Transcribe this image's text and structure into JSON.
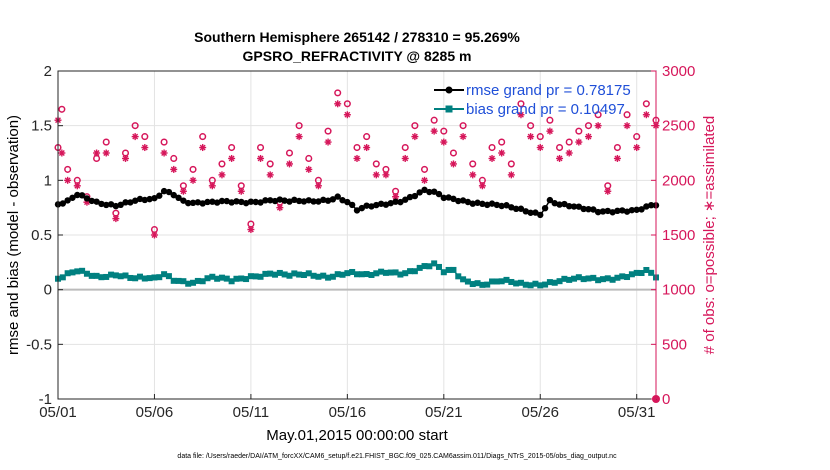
{
  "chart_data": {
    "type": "scatter",
    "title_lines": [
      "Southern Hemisphere 265142 / 278310 = 95.269%",
      "GPSRO_REFRACTIVITY @ 8285 m"
    ],
    "xlabel": "May.01,2015 00:00:00 start",
    "ylabel_left": "rmse and bias (model - observation)",
    "ylabel_right": "# of obs: o=possible; ∗=assimilated",
    "footnote": "data file: /Users/raeder/DAI/ATM_forcXX/CAM6_setup/f.e21.FHIST_BGC.f09_025.CAM6assim.011/Diags_NTrS_2015-05/obs_diag_output.nc",
    "x_tick_labels": [
      "05/01",
      "05/06",
      "05/11",
      "05/16",
      "05/21",
      "05/26",
      "05/31"
    ],
    "x_tick_days": [
      0,
      5,
      10,
      15,
      20,
      25,
      30
    ],
    "xlim": [
      0,
      31
    ],
    "ylim_left": [
      -1,
      2
    ],
    "ylim_right": [
      0,
      3000
    ],
    "y_left_ticks": [
      -1,
      -0.5,
      0,
      0.5,
      1,
      1.5,
      2
    ],
    "y_left_tick_labels": [
      "-1",
      "-0.5",
      "0",
      "0.5",
      "1",
      "1.5",
      "2"
    ],
    "y_right_ticks": [
      0,
      500,
      1000,
      1500,
      2000,
      2500,
      3000
    ],
    "y_right_tick_labels": [
      "0",
      "500",
      "1000",
      "1500",
      "2000",
      "2500",
      "3000"
    ],
    "grid": true,
    "legend_position": "top-right",
    "colors": {
      "rmse": "#000000",
      "bias": "#008080",
      "obs": "#d6165a",
      "zero_line": "#bbbbbb",
      "legend_text": "#1f4fd8"
    },
    "series": [
      {
        "name": "rmse grand pr = 0.78175",
        "axis": "left",
        "marker": "filled-circle-line",
        "keypoints_day": [
          0,
          0.5,
          1,
          2,
          3,
          4,
          5,
          5.5,
          6,
          6.5,
          7,
          8,
          9,
          10,
          11,
          12,
          13,
          14,
          14.5,
          15,
          15.5,
          16,
          17,
          18,
          19,
          19.5,
          20,
          21,
          22,
          23,
          24,
          25,
          25.5,
          26,
          27,
          28,
          29,
          30,
          31
        ],
        "keypoints_value": [
          0.78,
          0.8,
          0.86,
          0.8,
          0.78,
          0.81,
          0.82,
          0.9,
          0.88,
          0.82,
          0.8,
          0.79,
          0.8,
          0.81,
          0.82,
          0.8,
          0.81,
          0.83,
          0.85,
          0.8,
          0.72,
          0.75,
          0.79,
          0.83,
          0.9,
          0.88,
          0.84,
          0.82,
          0.79,
          0.76,
          0.73,
          0.7,
          0.82,
          0.78,
          0.74,
          0.72,
          0.73,
          0.72,
          0.77
        ]
      },
      {
        "name": "bias grand pr = 0.10497",
        "axis": "left",
        "marker": "filled-square-line",
        "keypoints_day": [
          0,
          1,
          2,
          3,
          4,
          5,
          5.5,
          6,
          7,
          8,
          9,
          10,
          11,
          12,
          13,
          14,
          15,
          16,
          17,
          18,
          19,
          19.5,
          20,
          20.5,
          21,
          22,
          23,
          24,
          25,
          26,
          27,
          28,
          29,
          30,
          30.5,
          31
        ],
        "keypoints_value": [
          0.1,
          0.16,
          0.12,
          0.15,
          0.1,
          0.09,
          0.14,
          0.1,
          0.07,
          0.1,
          0.08,
          0.13,
          0.15,
          0.12,
          0.14,
          0.13,
          0.15,
          0.12,
          0.17,
          0.16,
          0.2,
          0.22,
          0.16,
          0.18,
          0.1,
          0.05,
          0.07,
          0.05,
          0.06,
          0.08,
          0.09,
          0.1,
          0.12,
          0.14,
          0.16,
          0.11
        ]
      },
      {
        "name": "possible",
        "axis": "right",
        "marker": "open-circle",
        "keypoints_day": [
          0,
          0.2,
          0.5,
          1,
          1.5,
          2,
          2.5,
          3,
          3.5,
          4,
          4.5,
          5,
          5.5,
          6,
          6.5,
          7,
          7.5,
          8,
          8.5,
          9,
          9.5,
          10,
          10.5,
          11,
          11.5,
          12,
          12.5,
          13,
          13.5,
          14,
          14.5,
          15,
          15.5,
          16,
          16.5,
          17,
          17.5,
          18,
          18.5,
          19,
          19.5,
          20,
          20.5,
          21,
          21.5,
          22,
          22.5,
          23,
          23.5,
          24,
          24.5,
          25,
          25.5,
          26,
          26.5,
          27,
          27.5,
          28,
          28.5,
          29,
          29.5,
          30,
          30.5,
          31
        ],
        "keypoints_value": [
          2300,
          2650,
          2100,
          2000,
          1850,
          2200,
          2350,
          1700,
          2250,
          2500,
          2400,
          1550,
          2350,
          2200,
          1950,
          2100,
          2400,
          2000,
          2150,
          2300,
          1950,
          1600,
          2300,
          2150,
          1800,
          2250,
          2500,
          2200,
          2000,
          2450,
          2800,
          2700,
          2300,
          2400,
          2150,
          2100,
          1900,
          2300,
          2500,
          2100,
          2550,
          2450,
          2250,
          2500,
          2150,
          2000,
          2300,
          2350,
          2150,
          2700,
          2500,
          2400,
          2550,
          2300,
          2350,
          2450,
          2500,
          2600,
          1950,
          2300,
          2600,
          2400,
          2700,
          2550
        ]
      },
      {
        "name": "assimilated",
        "axis": "right",
        "marker": "asterisk",
        "keypoints_day": [
          0,
          0.2,
          0.5,
          1,
          1.5,
          2,
          2.5,
          3,
          3.5,
          4,
          4.5,
          5,
          5.5,
          6,
          6.5,
          7,
          7.5,
          8,
          8.5,
          9,
          9.5,
          10,
          10.5,
          11,
          11.5,
          12,
          12.5,
          13,
          13.5,
          14,
          14.5,
          15,
          15.5,
          16,
          16.5,
          17,
          17.5,
          18,
          18.5,
          19,
          19.5,
          20,
          20.5,
          21,
          21.5,
          22,
          22.5,
          23,
          23.5,
          24,
          24.5,
          25,
          25.5,
          26,
          26.5,
          27,
          27.5,
          28,
          28.5,
          29,
          29.5,
          30,
          30.5,
          31
        ],
        "keypoints_value": [
          2550,
          2250,
          2000,
          1950,
          1800,
          2250,
          2250,
          1650,
          2200,
          2400,
          2300,
          1500,
          2250,
          2100,
          1900,
          2000,
          2300,
          1950,
          2050,
          2200,
          1900,
          1550,
          2200,
          2050,
          1750,
          2150,
          2400,
          2100,
          1950,
          2350,
          2700,
          2600,
          2200,
          2300,
          2050,
          2050,
          1850,
          2200,
          2400,
          2000,
          2450,
          2350,
          2150,
          2400,
          2050,
          1950,
          2200,
          2250,
          2050,
          2600,
          2400,
          2300,
          2450,
          2200,
          2250,
          2350,
          2400,
          2500,
          1900,
          2200,
          2500,
          2300,
          2600,
          2500
        ]
      }
    ]
  }
}
